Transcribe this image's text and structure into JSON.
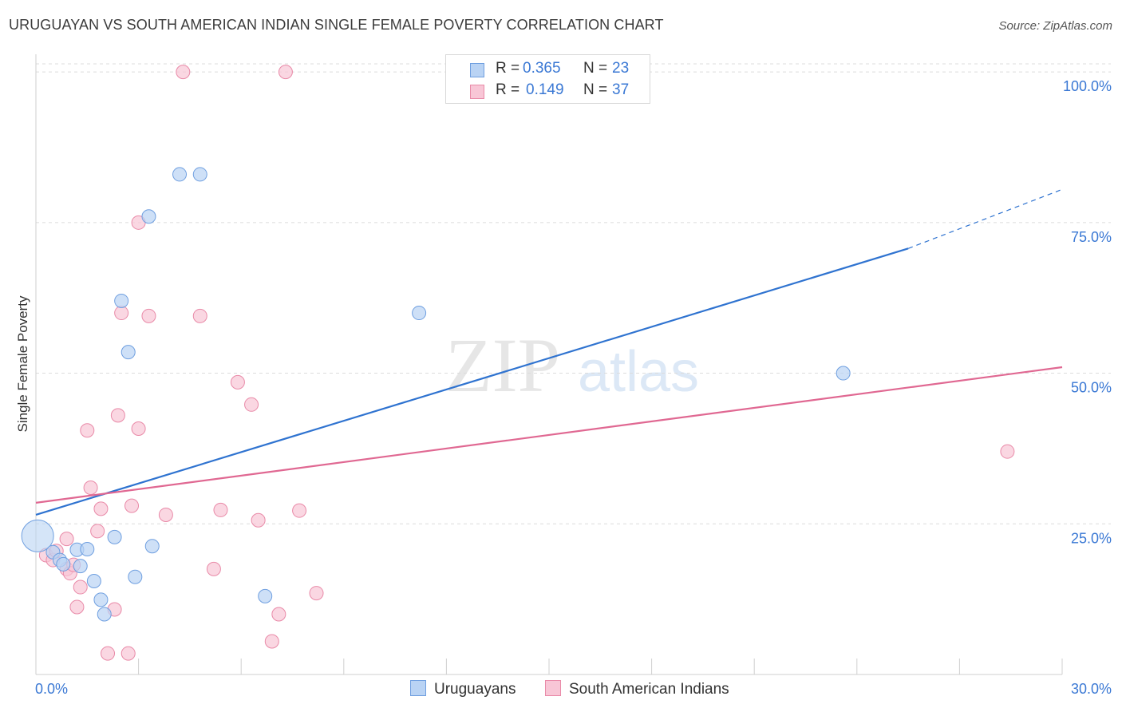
{
  "title": "URUGUAYAN VS SOUTH AMERICAN INDIAN SINGLE FEMALE POVERTY CORRELATION CHART",
  "source": "Source: ZipAtlas.com",
  "watermark": {
    "zip": "ZIP",
    "atlas": "atlas"
  },
  "legend": {
    "r_label": "R =",
    "n_label": "N =",
    "uruguayans": {
      "r": "0.365",
      "n": "23"
    },
    "south_american_indians": {
      "r": "0.149",
      "n": "37"
    }
  },
  "colors": {
    "blue_fill": "#b9d3f4",
    "blue_stroke": "#6f9fe0",
    "blue_line": "#2f73d0",
    "pink_fill": "#f8c6d6",
    "pink_stroke": "#e98aa8",
    "pink_line": "#e06892",
    "axis_text": "#3a78d4",
    "grid": "#dcdcdc"
  },
  "chart_data": {
    "type": "scatter",
    "title": "URUGUAYAN VS SOUTH AMERICAN INDIAN SINGLE FEMALE POVERTY CORRELATION CHART",
    "xlabel": "",
    "ylabel": "Single Female Poverty",
    "xlim": [
      0,
      30
    ],
    "ylim": [
      0,
      102
    ],
    "x_tick_labels": [
      "0.0%",
      "30.0%"
    ],
    "y_ticks": [
      25,
      50,
      75,
      100
    ],
    "y_tick_labels": [
      "25.0%",
      "50.0%",
      "75.0%",
      "100.0%"
    ],
    "series": [
      {
        "name": "Uruguayans",
        "color": "#6f9fe0",
        "points": [
          {
            "x": 0.05,
            "y": 23.0,
            "big": true
          },
          {
            "x": 0.5,
            "y": 20.3
          },
          {
            "x": 0.7,
            "y": 19.0
          },
          {
            "x": 0.8,
            "y": 18.3
          },
          {
            "x": 1.3,
            "y": 18.0
          },
          {
            "x": 1.2,
            "y": 20.7
          },
          {
            "x": 1.5,
            "y": 20.8
          },
          {
            "x": 1.7,
            "y": 15.5
          },
          {
            "x": 1.9,
            "y": 12.4
          },
          {
            "x": 2.0,
            "y": 10.0
          },
          {
            "x": 2.3,
            "y": 22.8
          },
          {
            "x": 2.5,
            "y": 62.0
          },
          {
            "x": 2.7,
            "y": 53.5
          },
          {
            "x": 2.9,
            "y": 16.2
          },
          {
            "x": 3.3,
            "y": 76.0
          },
          {
            "x": 3.4,
            "y": 21.3
          },
          {
            "x": 4.2,
            "y": 83.0
          },
          {
            "x": 4.8,
            "y": 83.0
          },
          {
            "x": 6.7,
            "y": 13.0
          },
          {
            "x": 11.2,
            "y": 60.0
          },
          {
            "x": 23.6,
            "y": 50.0
          }
        ],
        "trend": {
          "x0": 0,
          "y0": 26.5,
          "x1": 25.5,
          "y1": 70.7,
          "dash_to_x": 30,
          "dash_to_y": 80.5
        }
      },
      {
        "name": "South American Indians",
        "color": "#e98aa8",
        "points": [
          {
            "x": 0.3,
            "y": 19.8
          },
          {
            "x": 0.5,
            "y": 19.0
          },
          {
            "x": 0.6,
            "y": 20.5
          },
          {
            "x": 0.9,
            "y": 22.5
          },
          {
            "x": 0.9,
            "y": 17.5
          },
          {
            "x": 1.0,
            "y": 16.8
          },
          {
            "x": 1.1,
            "y": 18.2
          },
          {
            "x": 1.2,
            "y": 11.2
          },
          {
            "x": 1.3,
            "y": 14.5
          },
          {
            "x": 1.5,
            "y": 40.5
          },
          {
            "x": 1.6,
            "y": 31.0
          },
          {
            "x": 1.8,
            "y": 23.8
          },
          {
            "x": 1.9,
            "y": 27.5
          },
          {
            "x": 2.1,
            "y": 3.5
          },
          {
            "x": 2.3,
            "y": 10.8
          },
          {
            "x": 2.4,
            "y": 43.0
          },
          {
            "x": 2.5,
            "y": 60.0
          },
          {
            "x": 2.7,
            "y": 3.5
          },
          {
            "x": 2.8,
            "y": 28.0
          },
          {
            "x": 3.0,
            "y": 40.8
          },
          {
            "x": 3.0,
            "y": 75.0
          },
          {
            "x": 3.3,
            "y": 59.5
          },
          {
            "x": 3.8,
            "y": 26.5
          },
          {
            "x": 4.3,
            "y": 100.0
          },
          {
            "x": 4.8,
            "y": 59.5
          },
          {
            "x": 5.2,
            "y": 17.5
          },
          {
            "x": 5.4,
            "y": 27.3
          },
          {
            "x": 5.9,
            "y": 48.5
          },
          {
            "x": 6.3,
            "y": 44.8
          },
          {
            "x": 6.5,
            "y": 25.6
          },
          {
            "x": 6.9,
            "y": 5.5
          },
          {
            "x": 7.1,
            "y": 10.0
          },
          {
            "x": 7.3,
            "y": 100.0
          },
          {
            "x": 7.7,
            "y": 27.2
          },
          {
            "x": 8.2,
            "y": 13.5
          },
          {
            "x": 28.4,
            "y": 37.0
          }
        ],
        "trend": {
          "x0": 0,
          "y0": 28.5,
          "x1": 30,
          "y1": 51.0
        }
      }
    ]
  }
}
